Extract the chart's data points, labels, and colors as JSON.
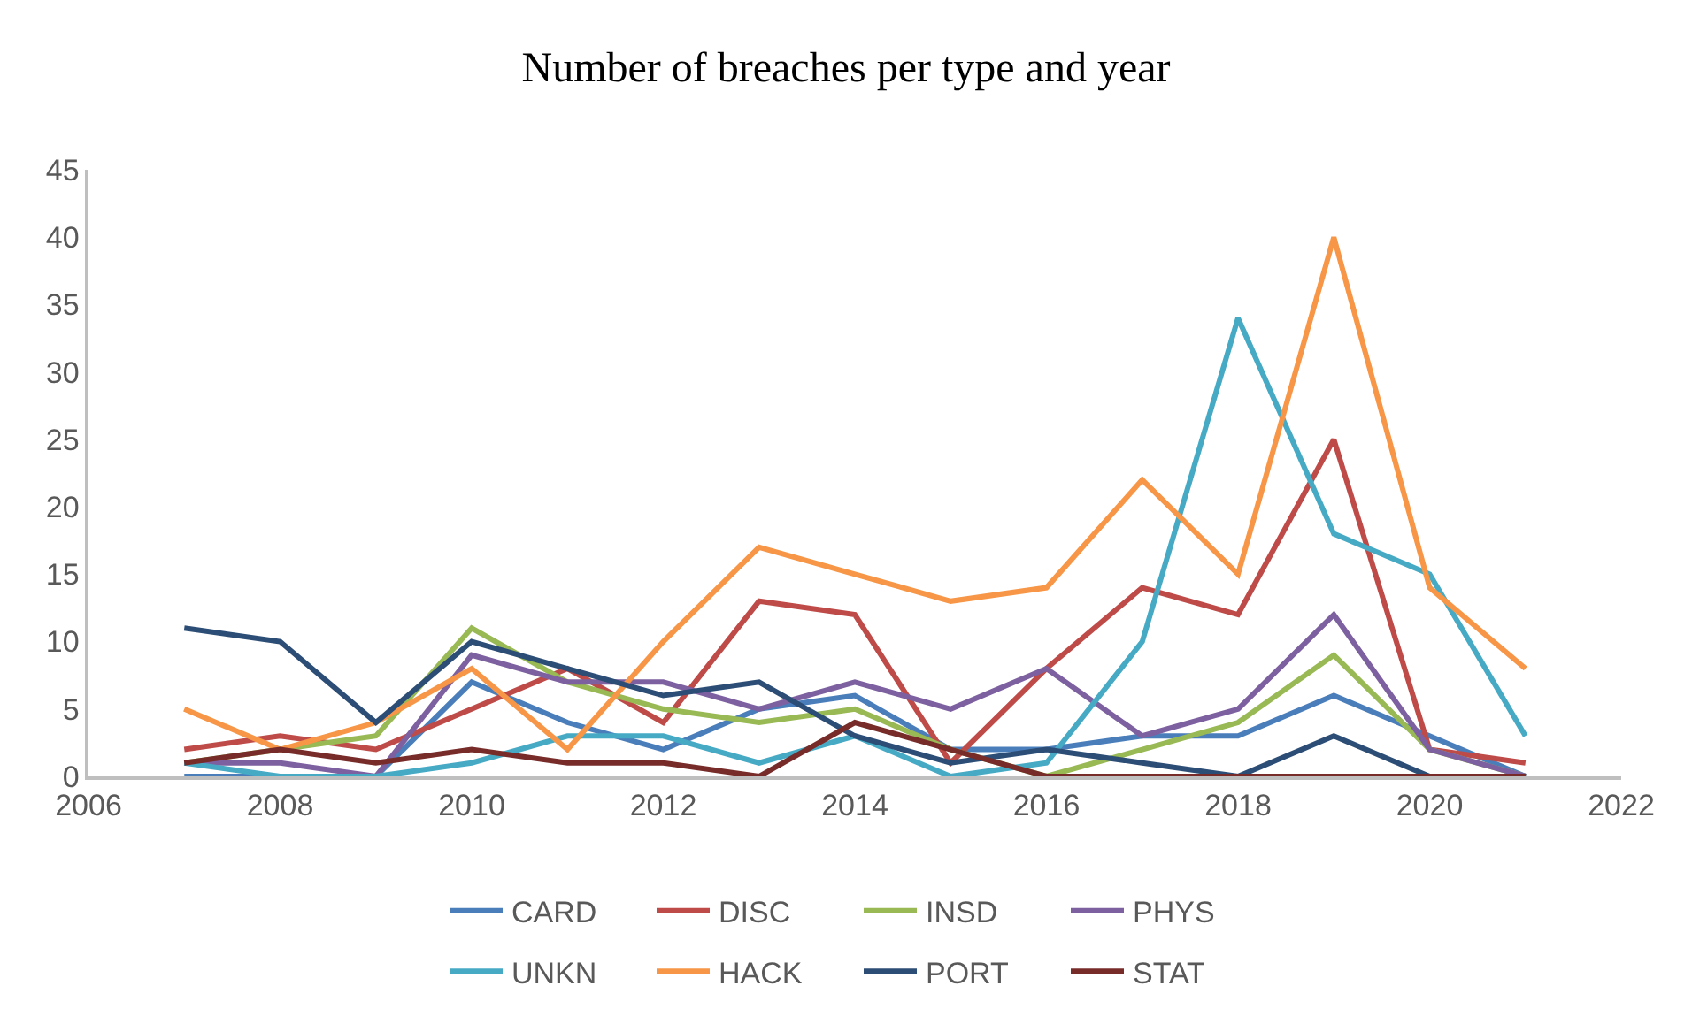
{
  "chart_data": {
    "type": "line",
    "title": "Number of breaches per type and year",
    "x": [
      2007,
      2008,
      2009,
      2010,
      2011,
      2012,
      2013,
      2014,
      2015,
      2016,
      2017,
      2018,
      2019,
      2020,
      2021
    ],
    "series": [
      {
        "name": "CARD",
        "color": "#4a7ebb",
        "values": [
          0,
          0,
          0,
          7,
          4,
          2,
          5,
          6,
          2,
          2,
          3,
          3,
          6,
          3,
          0
        ]
      },
      {
        "name": "DISC",
        "color": "#be4b48",
        "values": [
          2,
          3,
          2,
          5,
          8,
          4,
          13,
          12,
          1,
          8,
          14,
          12,
          25,
          2,
          1
        ]
      },
      {
        "name": "INSD",
        "color": "#98b954",
        "values": [
          1,
          2,
          3,
          11,
          7,
          5,
          4,
          5,
          2,
          0,
          2,
          4,
          9,
          2,
          0
        ]
      },
      {
        "name": "PHYS",
        "color": "#7d60a0",
        "values": [
          1,
          1,
          0,
          9,
          7,
          7,
          5,
          7,
          5,
          8,
          3,
          5,
          12,
          2,
          0
        ]
      },
      {
        "name": "UNKN",
        "color": "#46aac5",
        "values": [
          1,
          0,
          0,
          1,
          3,
          3,
          1,
          3,
          0,
          1,
          10,
          34,
          18,
          15,
          3
        ]
      },
      {
        "name": "HACK",
        "color": "#f79646",
        "values": [
          5,
          2,
          4,
          8,
          2,
          10,
          17,
          15,
          13,
          14,
          22,
          15,
          40,
          14,
          8
        ]
      },
      {
        "name": "PORT",
        "color": "#2c4d75",
        "values": [
          11,
          10,
          4,
          10,
          8,
          6,
          7,
          3,
          1,
          2,
          1,
          0,
          3,
          0,
          0
        ]
      },
      {
        "name": "STAT",
        "color": "#772c2a",
        "values": [
          1,
          2,
          1,
          2,
          1,
          1,
          0,
          4,
          2,
          0,
          0,
          0,
          0,
          0,
          0
        ]
      }
    ],
    "xlim": [
      2006,
      2022
    ],
    "xticks": [
      2006,
      2008,
      2010,
      2012,
      2014,
      2016,
      2018,
      2020,
      2022
    ],
    "ylim": [
      0,
      45
    ],
    "yticks": [
      0,
      5,
      10,
      15,
      20,
      25,
      30,
      35,
      40,
      45
    ],
    "legend": "bottom",
    "marker": "none",
    "line_style": "solid"
  }
}
